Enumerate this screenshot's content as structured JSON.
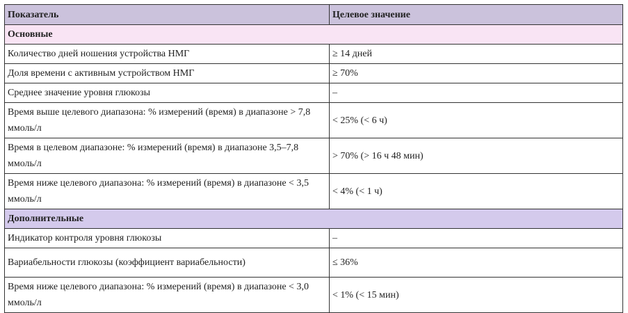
{
  "header": {
    "col1": "Показатель",
    "col2": "Целевое значение"
  },
  "sections": [
    {
      "title": "Основные",
      "color": "#f9e4f4",
      "rows": [
        {
          "indicator": "Количество дней ношения устройства НМГ",
          "target": "≥ 14 дней"
        },
        {
          "indicator": "Доля времени с активным устройством НМГ",
          "target": "≥ 70%"
        },
        {
          "indicator": "Среднее значение уровня глюкозы",
          "target": "–"
        },
        {
          "indicator": "Время выше целевого диапазона: % измерений (время) в диапазоне > 7,8 ммоль/л",
          "target": "< 25% (< 6 ч)"
        },
        {
          "indicator": "Время в целевом диапазоне: % измерений (время) в диапазоне 3,5–7,8 ммоль/л",
          "target": "> 70% (> 16 ч 48 мин)"
        },
        {
          "indicator": "Время ниже целевого диапазона: % измерений (время) в диапазоне < 3,5 ммоль/л",
          "target": "< 4% (< 1 ч)"
        }
      ]
    },
    {
      "title": "Дополнительные",
      "color": "#d4caec",
      "rows": [
        {
          "indicator": "Индикатор контроля уровня глюкозы",
          "target": "–"
        },
        {
          "indicator": "Вариабельности глюкозы (коэффициент вариабельности)",
          "target": "≤ 36%"
        },
        {
          "indicator": "Время ниже целевого диапазона: % измерений (время) в диапазоне < 3,0 ммоль/л",
          "target": "< 1% (< 15 мин)"
        }
      ]
    }
  ]
}
